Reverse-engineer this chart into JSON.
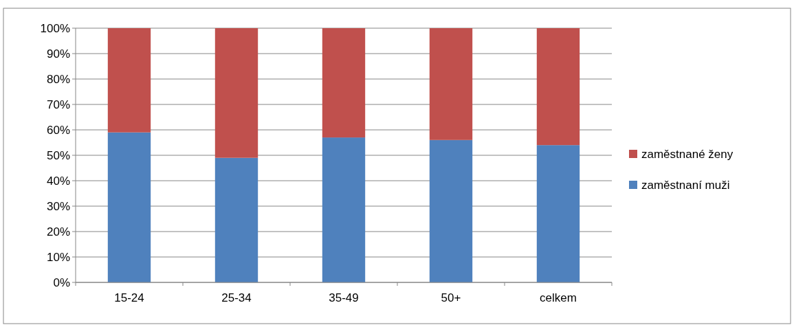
{
  "chart_data": {
    "type": "bar",
    "stacked": true,
    "categories": [
      "15-24",
      "25-34",
      "35-49",
      "50+",
      "celkem"
    ],
    "series": [
      {
        "name": "zaměstnaní muži",
        "color": "#4f81bd",
        "values": [
          59,
          49,
          57,
          56,
          54
        ]
      },
      {
        "name": "zaměstnané ženy",
        "color": "#c0504d",
        "values": [
          41,
          51,
          43,
          44,
          46
        ]
      }
    ],
    "ylim": [
      0,
      100
    ],
    "yticks": [
      {
        "value": 0,
        "label": "0%"
      },
      {
        "value": 10,
        "label": "10%"
      },
      {
        "value": 20,
        "label": "20%"
      },
      {
        "value": 30,
        "label": "30%"
      },
      {
        "value": 40,
        "label": "40%"
      },
      {
        "value": 50,
        "label": "50%"
      },
      {
        "value": 60,
        "label": "60%"
      },
      {
        "value": 70,
        "label": "70%"
      },
      {
        "value": 80,
        "label": "80%"
      },
      {
        "value": 90,
        "label": "90%"
      },
      {
        "value": 100,
        "label": "100%"
      }
    ],
    "grid": "y",
    "legend": "right"
  }
}
